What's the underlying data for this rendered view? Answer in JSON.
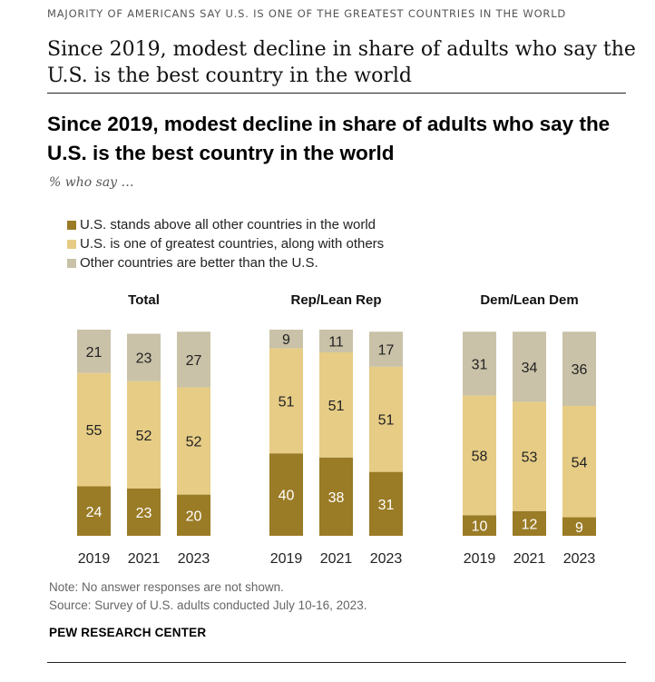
{
  "kicker": "MAJORITY OF AMERICANS SAY U.S. IS ONE OF THE GREATEST COUNTRIES IN THE WORLD",
  "headline": "Since 2019, modest decline in share of adults who say the U.S. is the best country in the world",
  "chart_data": {
    "type": "bar",
    "stacked": true,
    "title": "Since 2019, modest decline in share of adults who say the U.S. is the best country in the world",
    "subtitle": "% who say …",
    "legend_placement": "top-left",
    "grid": false,
    "categories": [
      "2019",
      "2021",
      "2023"
    ],
    "series": [
      {
        "key": "above",
        "name": "U.S. stands above all other countries in the world",
        "color": "#9a7b26"
      },
      {
        "key": "one",
        "name": "U.S. is one of greatest countries, along with others",
        "color": "#e6cc85"
      },
      {
        "key": "other",
        "name": "Other countries are better than the U.S.",
        "color": "#c9c2a8"
      }
    ],
    "panels": [
      {
        "name": "Total",
        "values": {
          "above": [
            24,
            23,
            20
          ],
          "one": [
            55,
            52,
            52
          ],
          "other": [
            21,
            23,
            27
          ]
        }
      },
      {
        "name": "Rep/Lean Rep",
        "values": {
          "above": [
            40,
            38,
            31
          ],
          "one": [
            51,
            51,
            51
          ],
          "other": [
            9,
            11,
            17
          ]
        }
      },
      {
        "name": "Dem/Lean Dem",
        "values": {
          "above": [
            10,
            12,
            9
          ],
          "one": [
            58,
            53,
            54
          ],
          "other": [
            31,
            34,
            36
          ]
        }
      }
    ]
  },
  "notes": {
    "note": "Note: No answer responses are not shown.",
    "source": "Source: Survey of U.S. adults conducted July 10-16, 2023."
  },
  "brand": "PEW RESEARCH CENTER"
}
